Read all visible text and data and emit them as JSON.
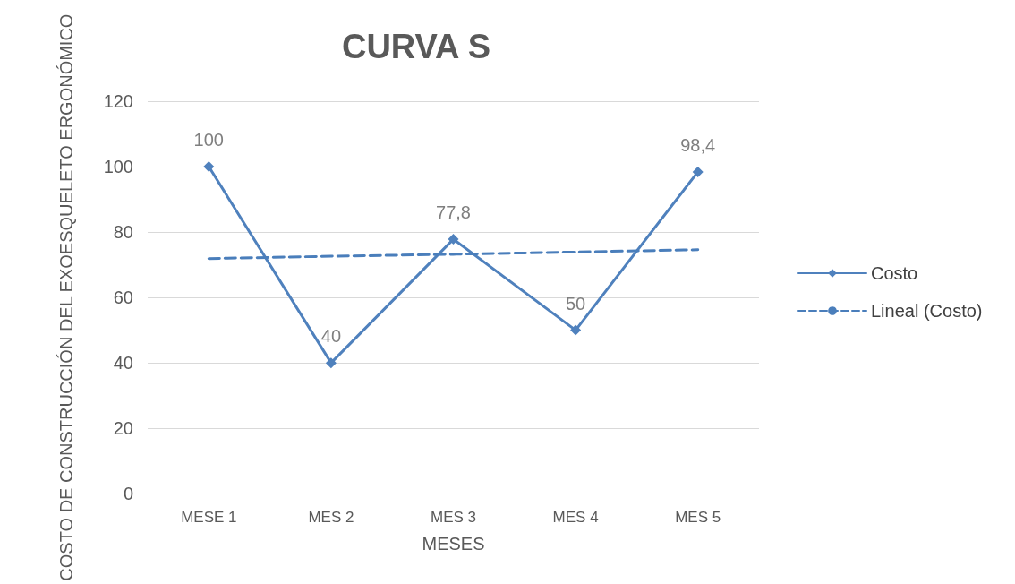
{
  "chart_data": {
    "type": "line",
    "title": "CURVA S",
    "xlabel": "MESES",
    "ylabel": "COSTO DE CONSTRUCCIÓN DEL EXOESQUELETO ERGONÓMICO",
    "categories": [
      "MESE 1",
      "MES 2",
      "MES 3",
      "MES 4",
      "MES 5"
    ],
    "series": [
      {
        "name": "Costo",
        "color": "#4f81bd",
        "values": [
          100,
          40,
          77.8,
          50,
          98.4
        ],
        "marker": "diamond",
        "line_style": "solid",
        "value_labels": [
          "100",
          "40",
          "77,8",
          "50",
          "98,4"
        ]
      },
      {
        "name": "Lineal (Costo)",
        "color": "#4a7ebb",
        "values": [
          71.9,
          72.6,
          73.2,
          73.9,
          74.6
        ],
        "marker": "none",
        "line_style": "dashed"
      }
    ],
    "ylim": [
      0,
      120
    ],
    "yticks": [
      0,
      20,
      40,
      60,
      80,
      100,
      120
    ],
    "grid": "y",
    "legend": "right"
  }
}
